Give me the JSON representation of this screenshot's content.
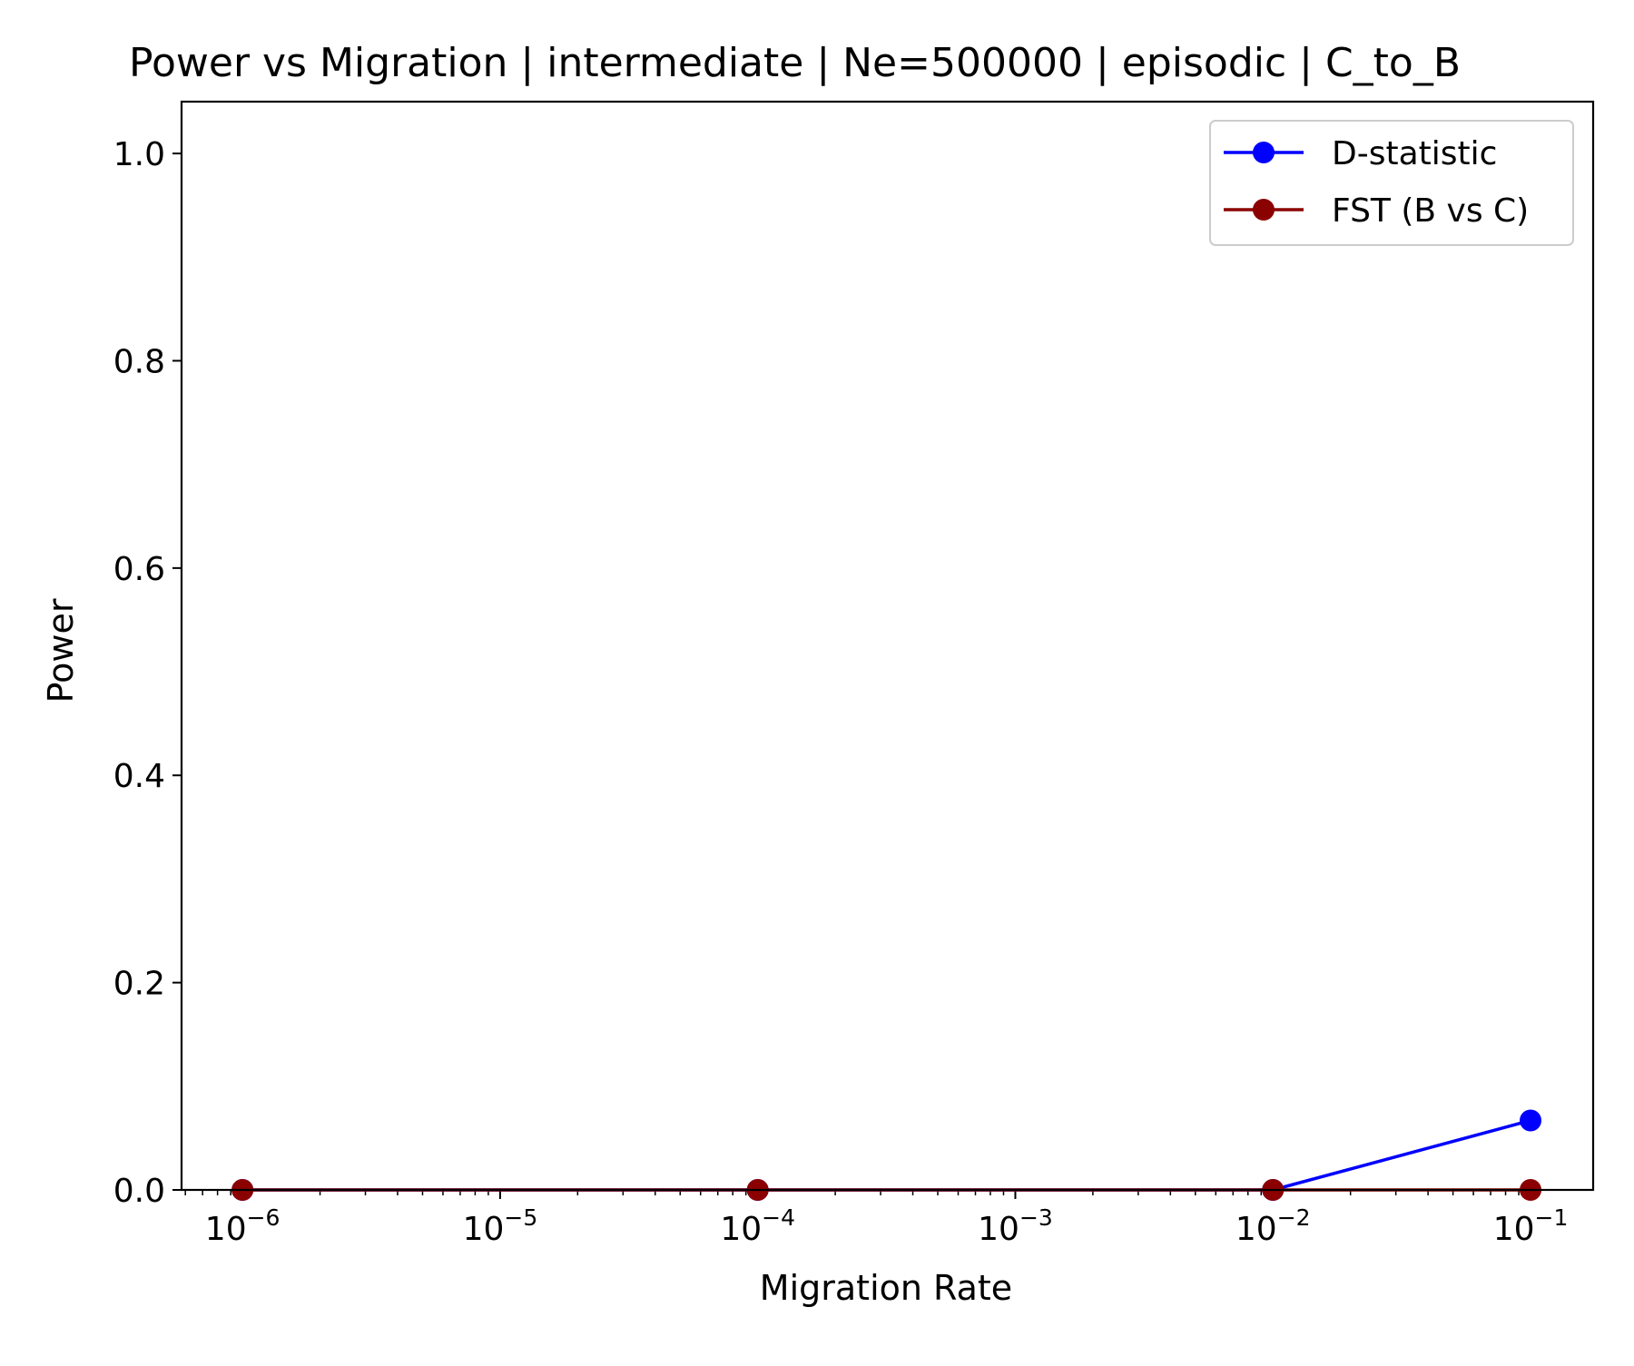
{
  "chart_data": {
    "type": "line",
    "title": "Power vs Migration | intermediate | Ne=500000 | episodic | C_to_B",
    "xlabel": "Migration Rate",
    "ylabel": "Power",
    "xscale": "log",
    "xlim": [
      5.8e-07,
      0.175
    ],
    "ylim": [
      0.0,
      1.05
    ],
    "x": [
      1e-06,
      0.0001,
      0.01,
      0.1
    ],
    "series": [
      {
        "name": "D-statistic",
        "color": "#0000ff",
        "values": [
          0.0,
          0.0,
          0.0,
          0.067
        ]
      },
      {
        "name": "FST (B vs C)",
        "color": "#8b0000",
        "values": [
          0.0,
          0.0,
          0.0,
          0.0
        ]
      }
    ],
    "y_ticks": [
      "0.0",
      "0.2",
      "0.4",
      "0.6",
      "0.8",
      "1.0"
    ],
    "y_tick_values": [
      0.0,
      0.2,
      0.4,
      0.6,
      0.8,
      1.0
    ],
    "x_ticks": [
      {
        "base": "10",
        "exp": "−6",
        "value": 1e-06
      },
      {
        "base": "10",
        "exp": "−5",
        "value": 1e-05
      },
      {
        "base": "10",
        "exp": "−4",
        "value": 0.0001
      },
      {
        "base": "10",
        "exp": "−3",
        "value": 0.001
      },
      {
        "base": "10",
        "exp": "−2",
        "value": 0.01
      },
      {
        "base": "10",
        "exp": "−1",
        "value": 0.1
      }
    ],
    "grid": false,
    "legend_position": "upper right"
  }
}
